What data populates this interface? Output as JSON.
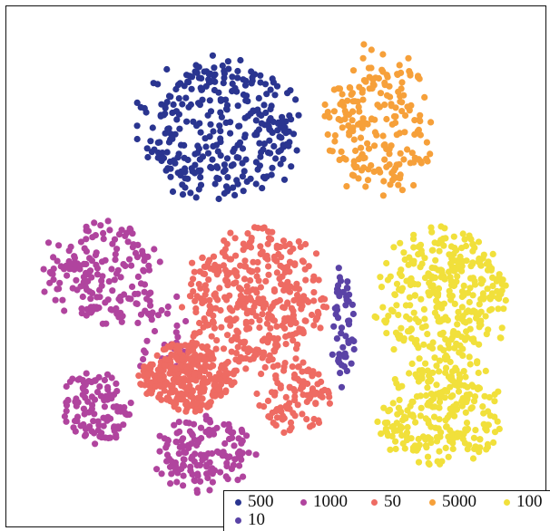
{
  "chart_data": {
    "type": "scatter",
    "title": "",
    "xlabel": "",
    "ylabel": "",
    "grid": false,
    "axes_visible": false,
    "legend_position": "bottom-right",
    "series": [
      {
        "name": "500",
        "color": "#2a3590",
        "clusters": [
          {
            "cx": 245,
            "cy": 140,
            "rx": 100,
            "ry": 88,
            "n": 330
          }
        ]
      },
      {
        "name": "1000",
        "color": "#b0449e",
        "clusters": [
          {
            "cx": 110,
            "cy": 300,
            "rx": 70,
            "ry": 62,
            "n": 170
          },
          {
            "cx": 105,
            "cy": 450,
            "rx": 45,
            "ry": 45,
            "n": 110
          },
          {
            "cx": 225,
            "cy": 500,
            "rx": 60,
            "ry": 45,
            "n": 150
          },
          {
            "cx": 175,
            "cy": 370,
            "rx": 40,
            "ry": 60,
            "n": 40
          }
        ]
      },
      {
        "name": "50",
        "color": "#ee6b63",
        "clusters": [
          {
            "cx": 280,
            "cy": 330,
            "rx": 90,
            "ry": 85,
            "n": 380
          },
          {
            "cx": 205,
            "cy": 415,
            "rx": 55,
            "ry": 42,
            "n": 300
          },
          {
            "cx": 325,
            "cy": 440,
            "rx": 45,
            "ry": 45,
            "n": 100
          }
        ]
      },
      {
        "name": "5000",
        "color": "#f6a03a",
        "clusters": [
          {
            "cx": 415,
            "cy": 135,
            "rx": 65,
            "ry": 90,
            "n": 210
          }
        ]
      },
      {
        "name": "100",
        "color": "#f1e03b",
        "clusters": [
          {
            "cx": 490,
            "cy": 330,
            "rx": 80,
            "ry": 85,
            "n": 330
          },
          {
            "cx": 485,
            "cy": 455,
            "rx": 75,
            "ry": 65,
            "n": 250
          }
        ]
      },
      {
        "name": "10",
        "color": "#5a43a6",
        "clusters": [
          {
            "cx": 378,
            "cy": 360,
            "rx": 14,
            "ry": 70,
            "n": 55
          }
        ]
      }
    ]
  }
}
